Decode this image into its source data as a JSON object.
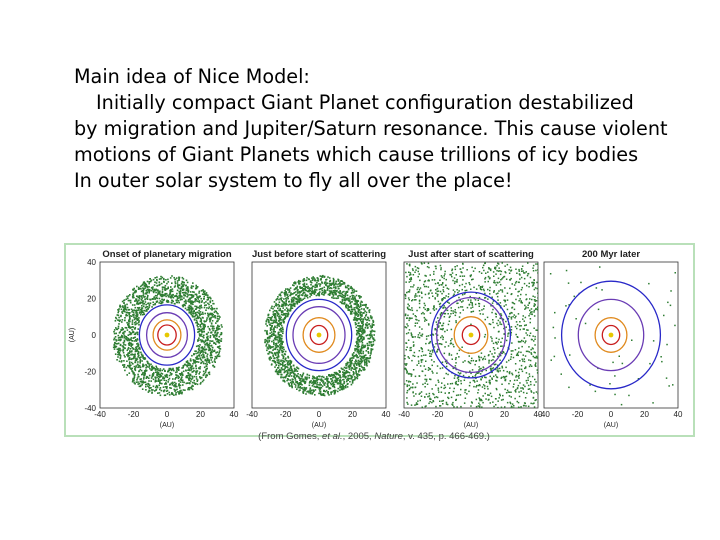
{
  "text": {
    "lines": [
      "Main idea of Nice Model:",
      "Initially compact Giant Planet configuration  destabilized",
      "by migration and Jupiter/Saturn resonance.  This cause violent",
      "motions of Giant Planets which cause trillions of icy bodies",
      "In outer solar system to fly all over the place!"
    ]
  },
  "figure": {
    "axis_unit": "(AU)",
    "y_ticks": [
      "40",
      "20",
      "0",
      "-20",
      "-40"
    ],
    "x_ticks": [
      "-40",
      "-20",
      "0",
      "20",
      "40"
    ],
    "panels": [
      {
        "title": "Onset of planetary migration",
        "disk": "annulus",
        "orbits_au": [
          5.5,
          8.3,
          12.2,
          16.5
        ],
        "disk_inner_au": 18,
        "disk_outer_au": 33
      },
      {
        "title": "Just before start of scattering",
        "disk": "annulus",
        "orbits_au": [
          5.2,
          9.5,
          15.5,
          19.5
        ],
        "disk_inner_au": 22,
        "disk_outer_au": 33
      },
      {
        "title": "Just after start of scattering",
        "disk": "scattered",
        "orbits_au": [
          5.2,
          10.0,
          20.5,
          23.5
        ],
        "disk_inner_au": 12,
        "disk_outer_au": 40
      },
      {
        "title": "200 Myr later",
        "disk": "sparse",
        "orbits_au": [
          5.2,
          9.5,
          19.5,
          29.5
        ],
        "disk_inner_au": 12,
        "disk_outer_au": 38
      }
    ],
    "colors": {
      "sun": "#e6c800",
      "orbits": [
        "#c81e1e",
        "#e08a1e",
        "#6a3cb4",
        "#2828c8"
      ],
      "particles": "#2e7d32"
    }
  },
  "caption": {
    "pre": "(From Gomes, ",
    "etal": "et al.",
    "mid": ", 2005, ",
    "journal": "Nature",
    "post": ", v. 435, p. 466-469.)"
  }
}
